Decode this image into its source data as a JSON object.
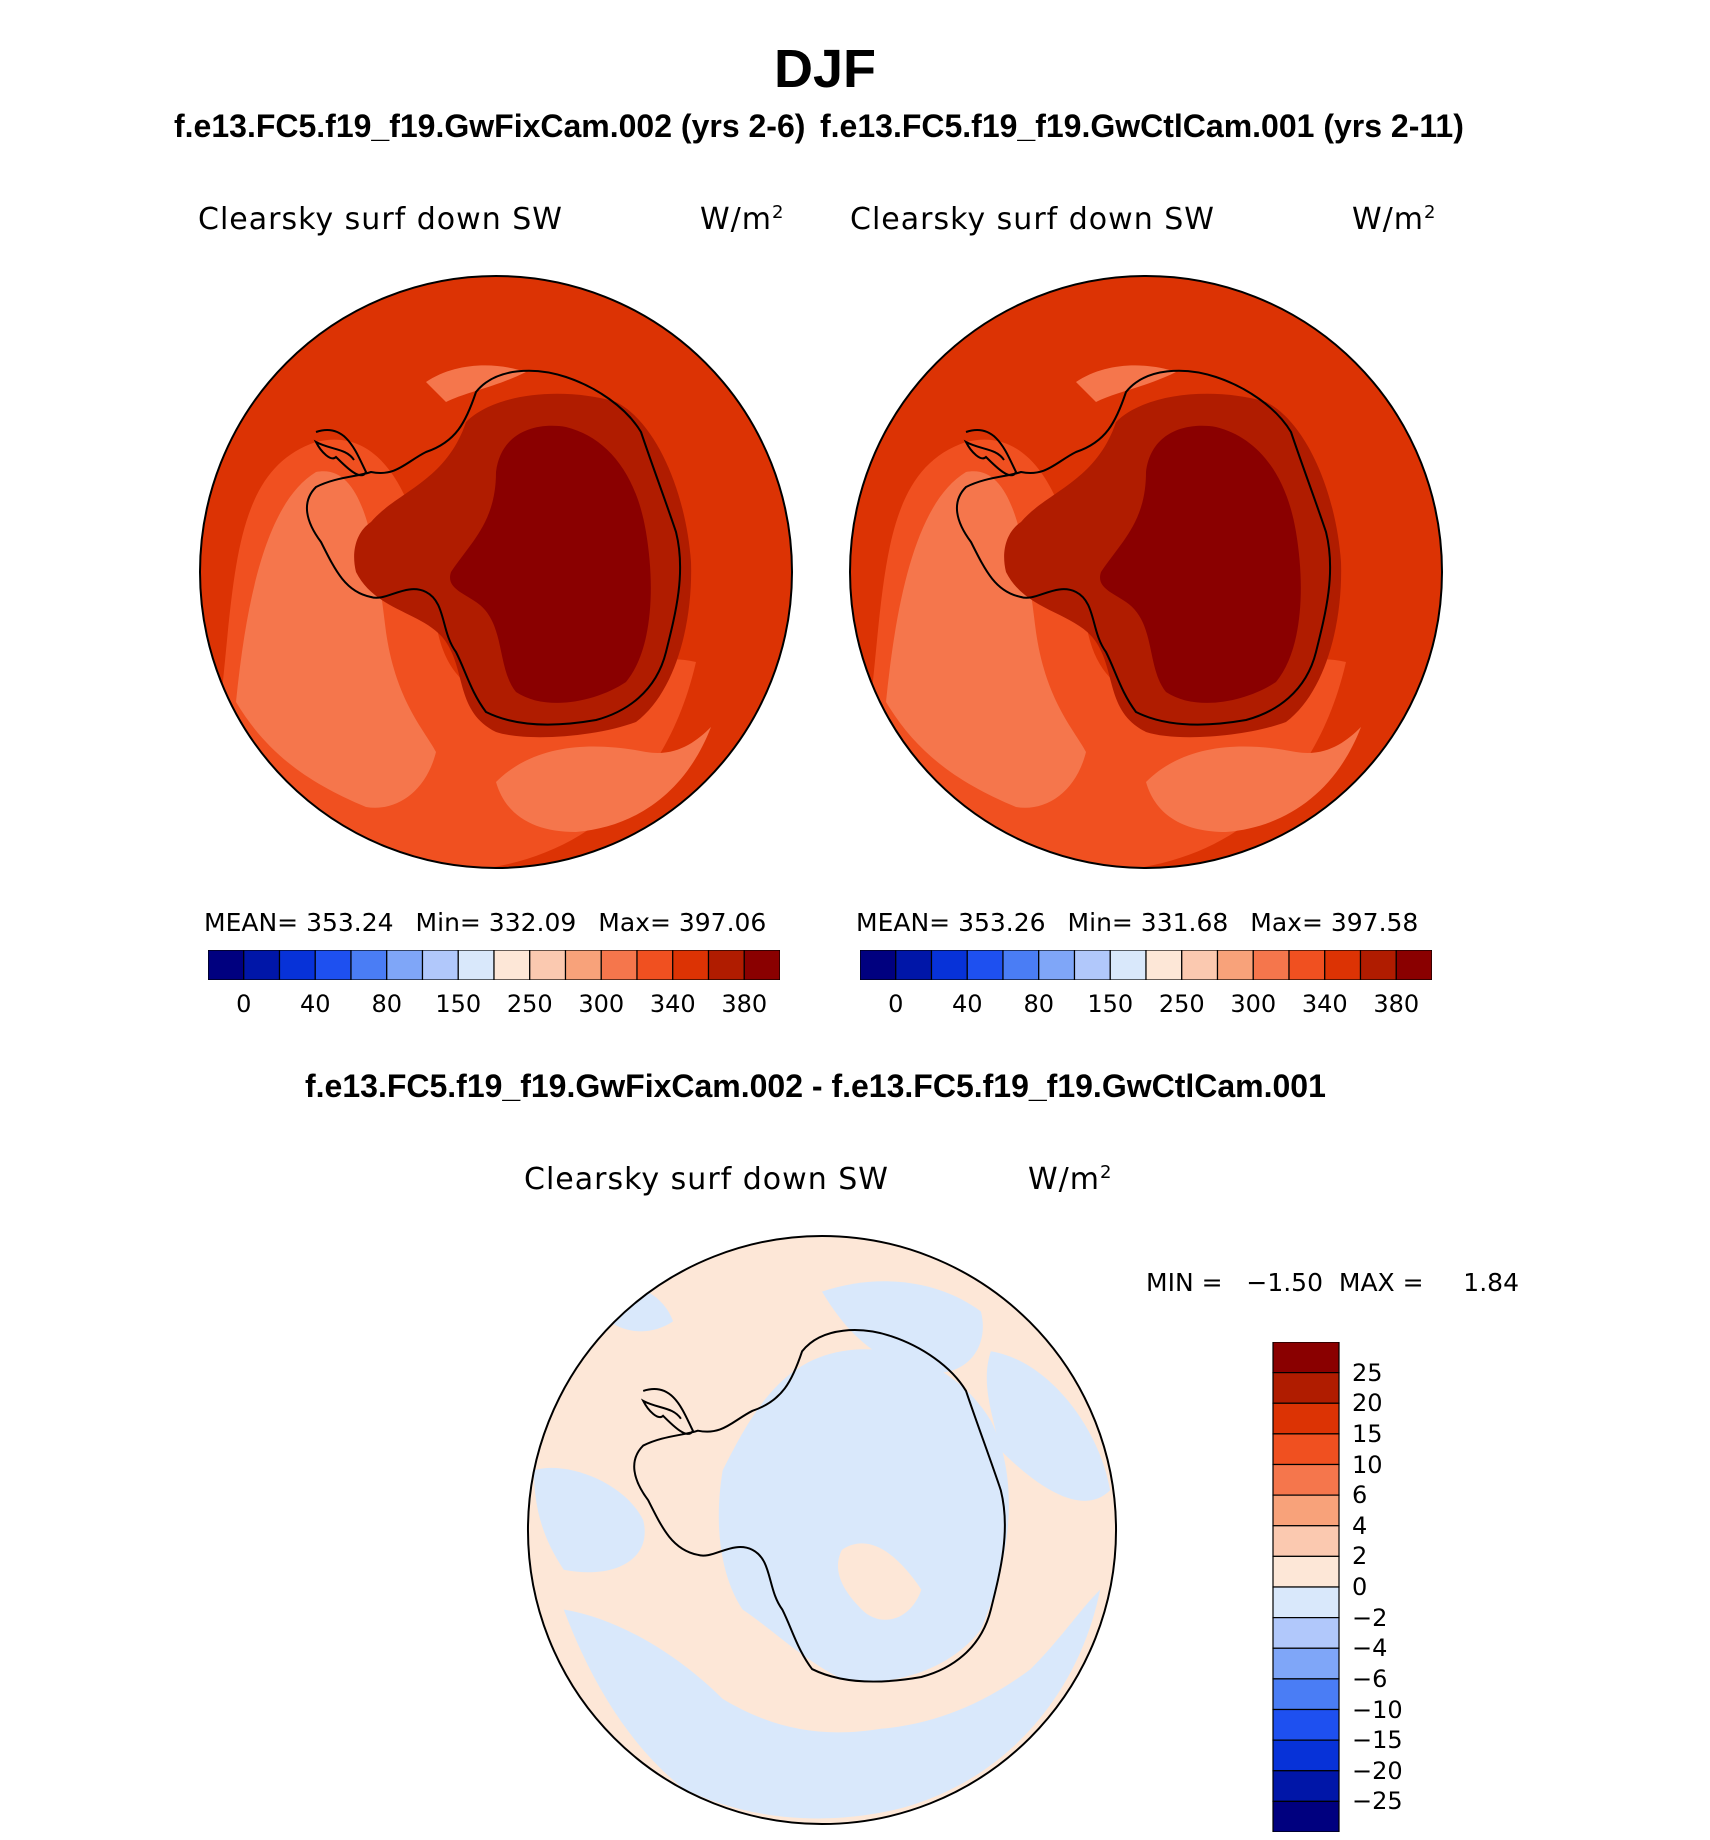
{
  "title": "DJF",
  "panels": [
    {
      "case_title": "f.e13.FC5.f19_f19.GwFixCam.002 (yrs 2-6)",
      "variable": "Clearsky surf down SW",
      "units": "W/m",
      "units_exp": "2",
      "stats": {
        "mean": "MEAN=  353.24",
        "min": "Min=  332.09",
        "max": "Max=  397.06"
      }
    },
    {
      "case_title": "f.e13.FC5.f19_f19.GwCtlCam.001 (yrs 2-11)",
      "variable": "Clearsky surf down SW",
      "units": "W/m",
      "units_exp": "2",
      "stats": {
        "mean": "MEAN=  353.26",
        "min": "Min=  331.68",
        "max": "Max=  397.58"
      }
    }
  ],
  "abs_colorbar": {
    "colors": [
      "#00007f",
      "#0016a8",
      "#0732d8",
      "#1e50f0",
      "#4a7df5",
      "#7fa6f8",
      "#b1c8fb",
      "#d9e8fb",
      "#fde7d7",
      "#fbc9b0",
      "#f8a27a",
      "#f5764c",
      "#f05020",
      "#dc3304",
      "#b01c00",
      "#8a0000"
    ],
    "labels": [
      "0",
      "40",
      "80",
      "150",
      "250",
      "300",
      "340",
      "380"
    ]
  },
  "difference": {
    "title": "f.e13.FC5.f19_f19.GwFixCam.002 - f.e13.FC5.f19_f19.GwCtlCam.001",
    "variable": "Clearsky surf down SW",
    "units": "W/m",
    "units_exp": "2",
    "minmax": "MIN =   −1.50  MAX =     1.84"
  },
  "diff_colorbar": {
    "colors": [
      "#8a0000",
      "#b01c00",
      "#dc3304",
      "#f05020",
      "#f5764c",
      "#f8a27a",
      "#fbc9b0",
      "#fde7d7",
      "#d9e8fb",
      "#b1c8fb",
      "#7fa6f8",
      "#4a7df5",
      "#1e50f0",
      "#0732d8",
      "#0016a8",
      "#00007f"
    ],
    "labels": [
      "25",
      "20",
      "15",
      "10",
      "6",
      "4",
      "2",
      "0",
      "−2",
      "−4",
      "−6",
      "−10",
      "−15",
      "−20",
      "−25"
    ]
  },
  "map_colors": {
    "ocean": "#dc3304",
    "band": "#f05020",
    "light": "#f5764c",
    "coast": "#b01c00",
    "interior": "#8a0000",
    "diff_pos": "#fde7d7",
    "diff_neg": "#d9e8fb"
  }
}
